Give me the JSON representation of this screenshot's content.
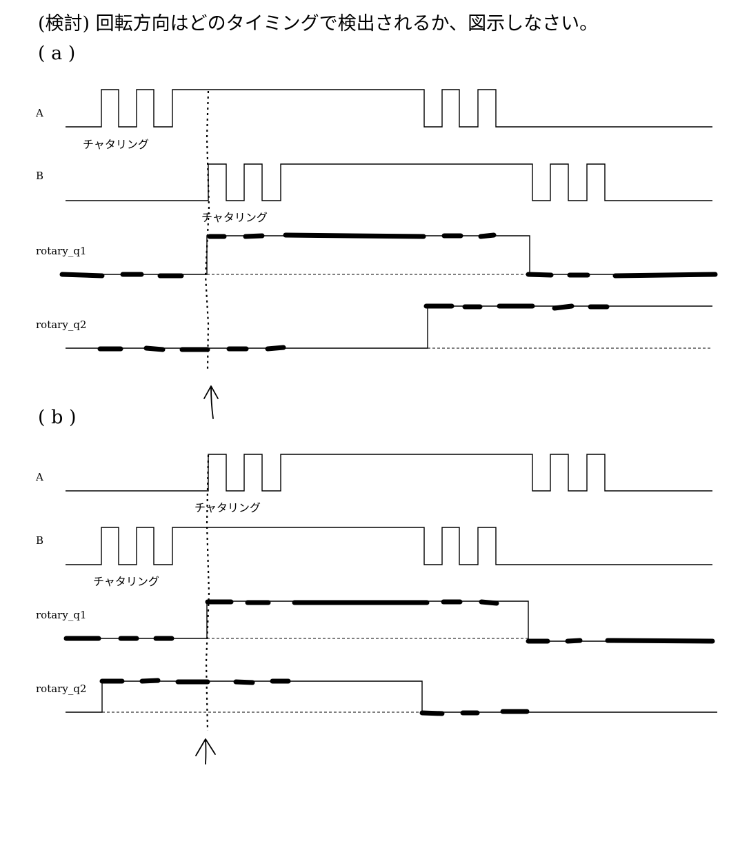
{
  "title": "(検討) 回転方向はどのタイミングで検出されるか、図示しなさい。",
  "sections": [
    {
      "label": "( a )",
      "signals": {
        "A": "A",
        "B": "B",
        "q1": "rotary_q1",
        "q2": "rotary_q2"
      },
      "chattering_A": "チャタリング",
      "chattering_B": "チャタリング"
    },
    {
      "label": "( b )",
      "signals": {
        "A": "A",
        "B": "B",
        "q1": "rotary_q1",
        "q2": "rotary_q2"
      },
      "chattering_A": "チャタリング",
      "chattering_B": "チャタリング"
    }
  ]
}
